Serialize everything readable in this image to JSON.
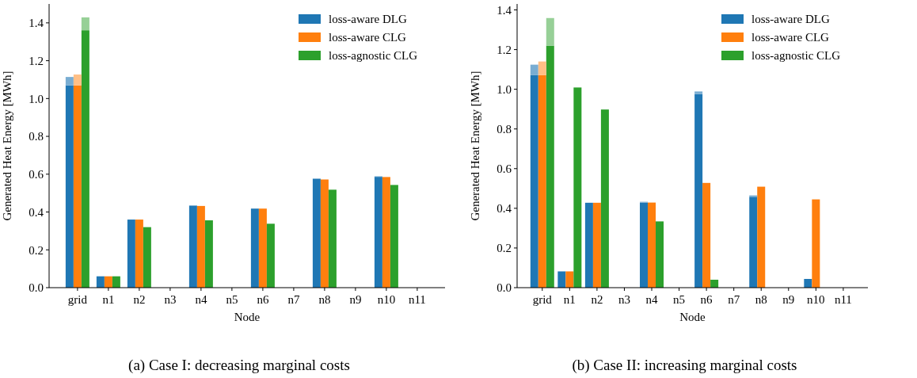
{
  "chart_data": [
    {
      "type": "bar",
      "title": "(a) Case I: decreasing marginal costs",
      "xlabel": "Node",
      "ylabel": "Generated Heat Energy [MWh]",
      "categories": [
        "grid",
        "n1",
        "n2",
        "n3",
        "n4",
        "n5",
        "n6",
        "n7",
        "n8",
        "n9",
        "n10",
        "n11"
      ],
      "ylim": [
        0,
        1.5
      ],
      "yticks": [
        {
          "value": 0,
          "label": "0.0"
        },
        {
          "value": 0.2,
          "label": "0.2"
        },
        {
          "value": 0.4,
          "label": "0.4"
        },
        {
          "value": 0.6,
          "label": "0.6"
        },
        {
          "value": 0.8,
          "label": "0.8"
        },
        {
          "value": 1,
          "label": "1.0"
        },
        {
          "value": 1.2,
          "label": "1.2"
        },
        {
          "value": 1.4,
          "label": "1.4"
        }
      ],
      "legend": "top right",
      "series": [
        {
          "name": "loss-aware DLG",
          "color": "#1f77b4",
          "values": [
            1.07,
            0.06,
            0.36,
            0,
            0.432,
            0,
            0.418,
            0,
            0.575,
            0,
            0.586,
            0
          ]
        },
        {
          "name": "loss-aware CLG",
          "color": "#ff7f0e",
          "values": [
            1.07,
            0.06,
            0.36,
            0,
            0.432,
            0,
            0.418,
            0,
            0.572,
            0,
            0.585,
            0
          ]
        },
        {
          "name": "loss-agnostic CLG",
          "color": "#2ca02c",
          "values": [
            1.361,
            0.06,
            0.32,
            0,
            0.356,
            0,
            0.338,
            0,
            0.518,
            0,
            0.543,
            0
          ]
        },
        {
          "color": "#79add2",
          "base": [
            1.07,
            null,
            null,
            null,
            0.432,
            null,
            null,
            null,
            0.575,
            null,
            0.586,
            null
          ],
          "values": [
            0.044,
            null,
            null,
            null,
            0.004,
            null,
            null,
            null,
            0.003,
            null,
            0.003,
            null
          ]
        },
        {
          "color": "#ffbf86",
          "base": [
            1.07,
            null,
            null,
            null,
            null,
            null,
            null,
            null,
            null,
            null,
            null,
            null
          ],
          "values": [
            0.057,
            null,
            null,
            null,
            null,
            null,
            null,
            null,
            null,
            null,
            null,
            null
          ]
        },
        {
          "color": "#97d097",
          "base": [
            1.361,
            null,
            null,
            null,
            null,
            null,
            null,
            null,
            null,
            null,
            null,
            null
          ],
          "values": [
            0.068,
            null,
            null,
            null,
            null,
            null,
            null,
            null,
            null,
            null,
            null,
            null
          ]
        }
      ]
    },
    {
      "type": "bar",
      "title": "(b) Case II: increasing marginal costs",
      "xlabel": "Node",
      "ylabel": "Generated Heat Energy [MWh]",
      "categories": [
        "grid",
        "n1",
        "n2",
        "n3",
        "n4",
        "n5",
        "n6",
        "n7",
        "n8",
        "n9",
        "n10",
        "n11"
      ],
      "ylim": [
        0,
        1.43
      ],
      "yticks": [
        {
          "value": 0,
          "label": "0.0"
        },
        {
          "value": 0.2,
          "label": "0.2"
        },
        {
          "value": 0.4,
          "label": "0.4"
        },
        {
          "value": 0.6,
          "label": "0.6"
        },
        {
          "value": 0.8,
          "label": "0.8"
        },
        {
          "value": 1,
          "label": "1.0"
        },
        {
          "value": 1.2,
          "label": "1.2"
        },
        {
          "value": 1.4,
          "label": "1.4"
        }
      ],
      "legend": "top right",
      "series": [
        {
          "name": "loss-aware DLG",
          "color": "#1f77b4",
          "values": [
            1.071,
            0.082,
            0.428,
            0,
            0.429,
            0,
            0.976,
            0,
            0.458,
            0,
            0.044,
            0
          ]
        },
        {
          "name": "loss-aware CLG",
          "color": "#ff7f0e",
          "values": [
            1.071,
            0.082,
            0.428,
            0,
            0.429,
            0,
            0.528,
            0,
            0.509,
            0,
            0.445,
            0
          ]
        },
        {
          "name": "loss-agnostic CLG",
          "color": "#2ca02c",
          "values": [
            1.22,
            1.009,
            0.898,
            0,
            0.334,
            0,
            0.04,
            0,
            0,
            0,
            0,
            0
          ]
        },
        {
          "color": "#79add2",
          "base": [
            1.071,
            null,
            null,
            null,
            0.429,
            null,
            0.976,
            null,
            0.458,
            null,
            null,
            null
          ],
          "values": [
            0.053,
            null,
            null,
            null,
            0.004,
            null,
            0.013,
            null,
            0.007,
            null,
            null,
            null
          ]
        },
        {
          "color": "#ffbf86",
          "base": [
            1.071,
            null,
            null,
            null,
            null,
            null,
            null,
            null,
            null,
            null,
            null,
            null
          ],
          "values": [
            0.069,
            null,
            null,
            null,
            null,
            null,
            null,
            null,
            null,
            null,
            null,
            null
          ]
        },
        {
          "color": "#97d097",
          "base": [
            1.22,
            null,
            null,
            null,
            null,
            null,
            null,
            null,
            null,
            null,
            null,
            null
          ],
          "values": [
            0.139,
            null,
            null,
            null,
            null,
            null,
            null,
            null,
            null,
            null,
            null,
            null
          ]
        }
      ]
    }
  ]
}
